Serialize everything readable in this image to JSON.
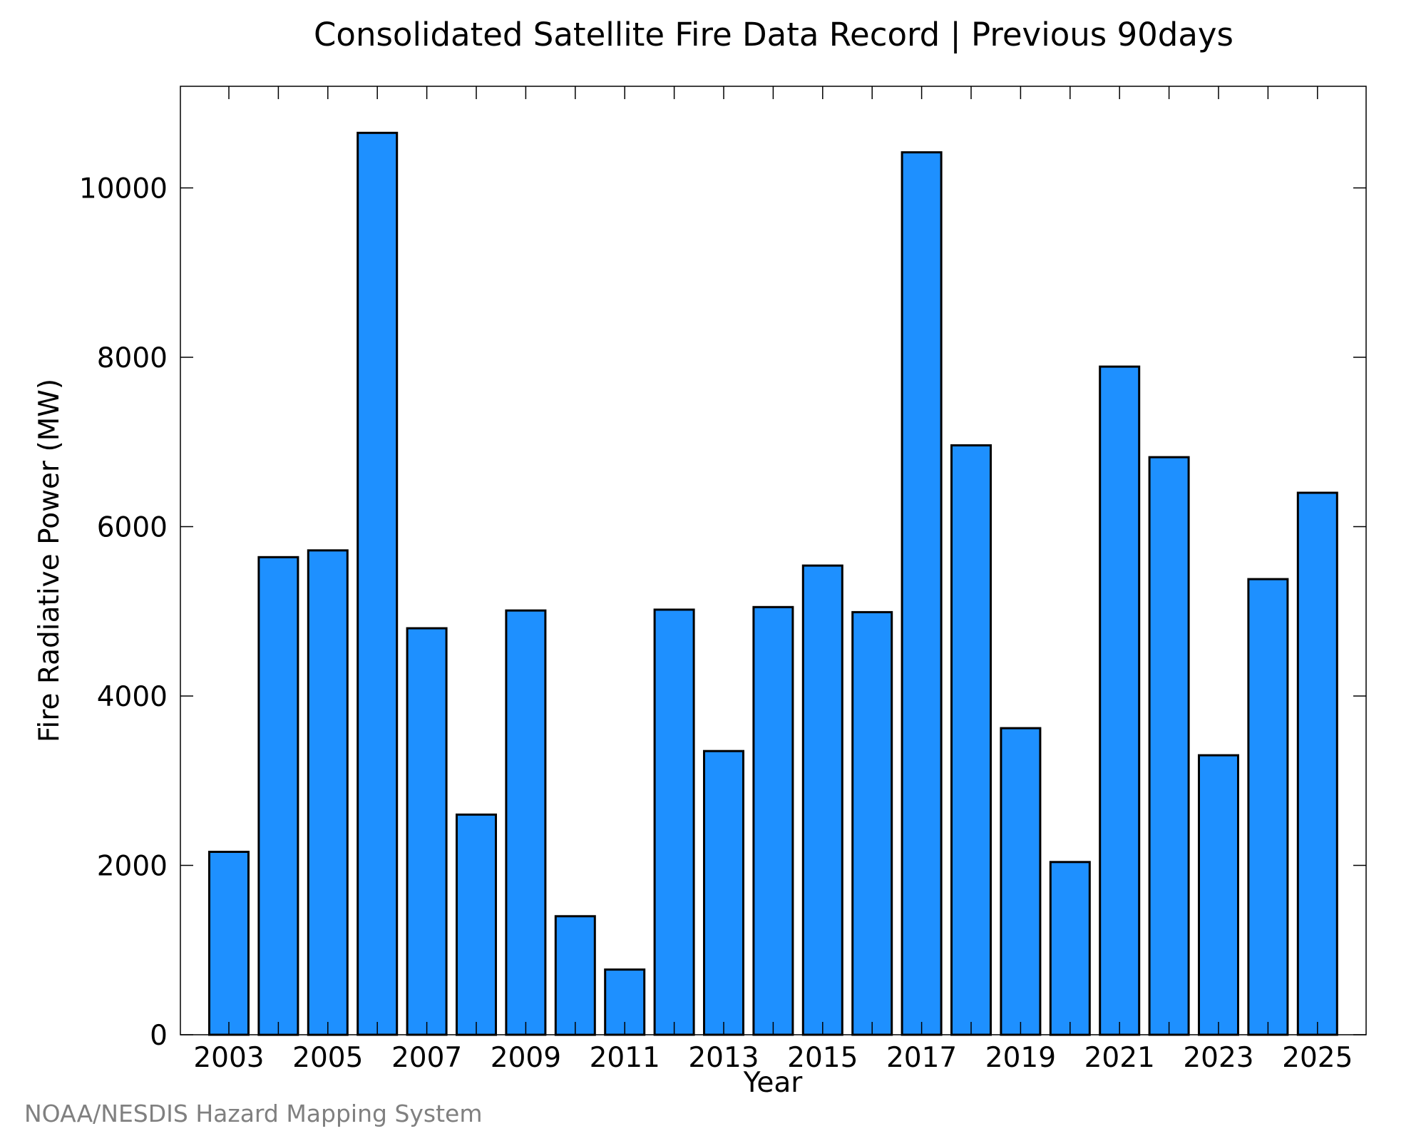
{
  "chart_data": {
    "type": "bar",
    "title": "Consolidated Satellite Fire Data Record | Previous 90days",
    "xlabel": "Year",
    "ylabel": "Fire Radiative Power (MW)",
    "categories": [
      "2003",
      "2004",
      "2005",
      "2006",
      "2007",
      "2008",
      "2009",
      "2010",
      "2011",
      "2012",
      "2013",
      "2014",
      "2015",
      "2016",
      "2017",
      "2018",
      "2019",
      "2020",
      "2021",
      "2022",
      "2023",
      "2024",
      "2025"
    ],
    "values": [
      2160,
      5640,
      5720,
      10650,
      4800,
      2600,
      5010,
      1400,
      770,
      5020,
      3350,
      5050,
      5540,
      4990,
      10420,
      6960,
      3620,
      2040,
      7890,
      6820,
      3300,
      5380,
      6400
    ],
    "x_tick_labels": [
      "2003",
      "2005",
      "2007",
      "2009",
      "2011",
      "2013",
      "2015",
      "2017",
      "2019",
      "2021",
      "2023",
      "2025"
    ],
    "y_tick_labels": [
      "0",
      "2000",
      "4000",
      "6000",
      "8000",
      "10000"
    ],
    "y_ticks": [
      0,
      2000,
      4000,
      6000,
      8000,
      10000
    ],
    "ylim": [
      0,
      11200
    ],
    "grid": false,
    "legend": "none",
    "bar_color": "#1e90ff",
    "bar_edge_color": "#000000"
  },
  "footer": {
    "credit": "NOAA/NESDIS Hazard Mapping System"
  }
}
